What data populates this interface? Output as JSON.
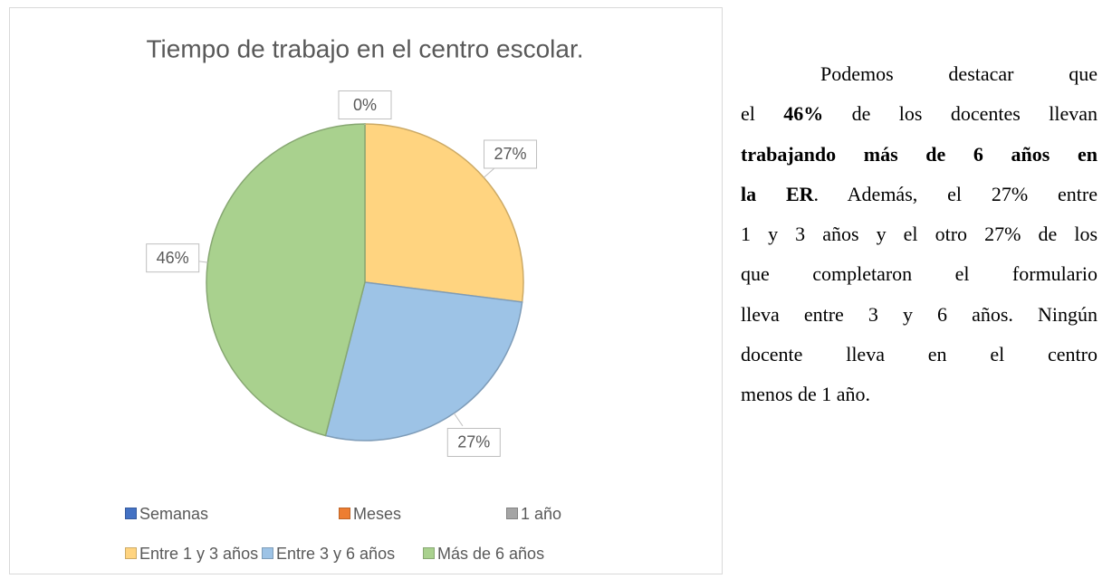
{
  "chart_data": {
    "type": "pie",
    "title": "Tiempo de trabajo en el centro escolar.",
    "categories": [
      "Semanas",
      "Meses",
      "1 año",
      "Entre 1 y 3 años",
      "Entre 3 y 6 años",
      "Más de 6 años"
    ],
    "values": [
      0,
      0,
      0,
      27,
      27,
      46
    ],
    "value_labels": [
      "0%",
      "0%",
      "0%",
      "27%",
      "27%",
      "46%"
    ],
    "colors": [
      "#4472c4",
      "#ed7d31",
      "#a5a5a5",
      "#ffd480",
      "#9dc3e6",
      "#a9d18e"
    ]
  },
  "text": {
    "lines": [
      [
        {
          "text": "Podemos destacar que",
          "bold": false
        }
      ],
      [
        {
          "text": "el ",
          "bold": false
        },
        {
          "text": "46%",
          "bold": true
        },
        {
          "text": " de los docentes llevan",
          "bold": false
        }
      ],
      [
        {
          "text": "trabajando más de 6 años en",
          "bold": true
        }
      ],
      [
        {
          "text": "la ER",
          "bold": true
        },
        {
          "text": ". Además, el 27% entre",
          "bold": false
        }
      ],
      [
        {
          "text": "1 y 3 años y el otro 27% de los",
          "bold": false
        }
      ],
      [
        {
          "text": "que completaron el formulario",
          "bold": false
        }
      ],
      [
        {
          "text": "lleva entre 3 y 6 años. Ningún",
          "bold": false
        }
      ],
      [
        {
          "text": "docente lleva en el centro",
          "bold": false
        }
      ],
      [
        {
          "text": "menos de 1 año.",
          "bold": false
        }
      ]
    ]
  }
}
